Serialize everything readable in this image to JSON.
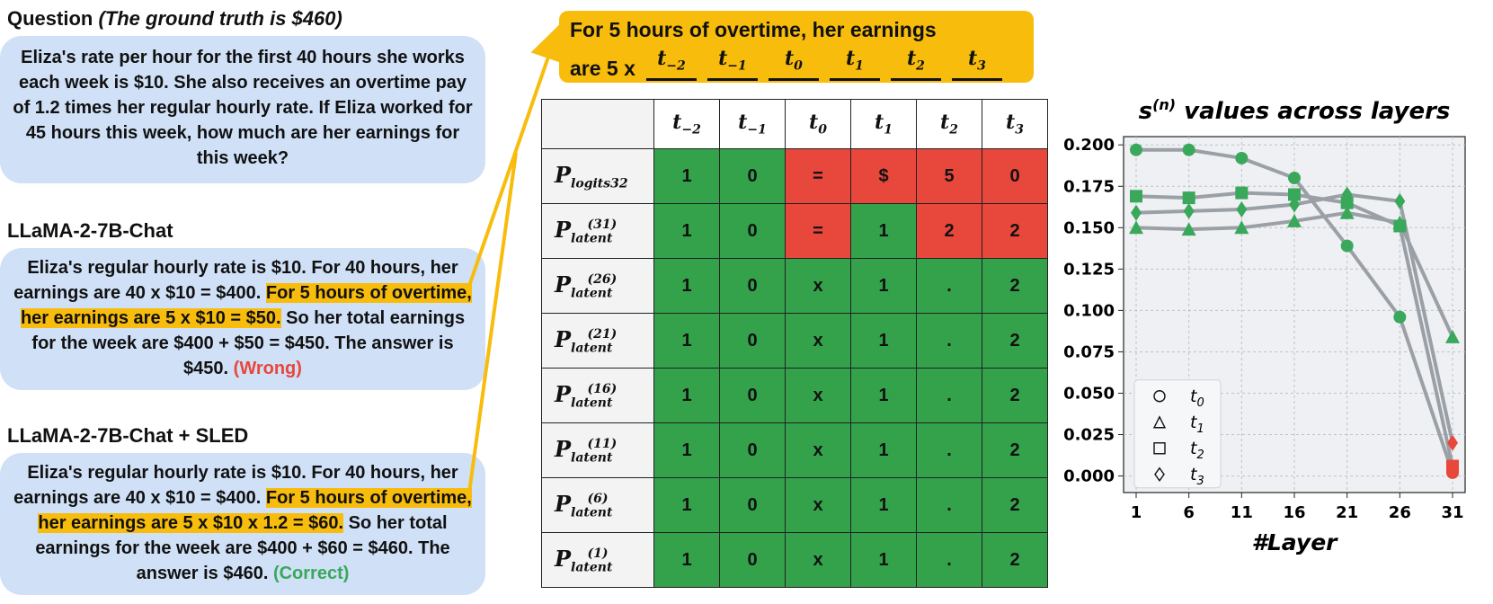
{
  "question": {
    "title": "Question",
    "title_note": "(The ground truth is $460)",
    "text": "Eliza's rate per hour for the first 40 hours she works each week is $10. She also receives an overtime pay of 1.2 times her regular hourly rate. If Eliza worked for 45 hours this week, how much are her earnings for this week?"
  },
  "baseline": {
    "title": "LLaMA-2-7B-Chat",
    "text_before": "Eliza's regular hourly rate is $10. For 40 hours, her earnings are 40 x $10 = $400. ",
    "highlight": "For 5 hours of overtime, her earnings are 5 x $10 = $50.",
    "text_after": " So her total earnings for the week are $400 + $50 = $450. The answer is $450. ",
    "verdict": "(Wrong)"
  },
  "sled": {
    "title": "LLaMA-2-7B-Chat + SLED",
    "text_before": "Eliza's regular hourly rate is $10. For 40 hours, her earnings are 40 x $10 = $400. ",
    "highlight": "For 5 hours of overtime, her earnings are 5 x $10 x 1.2 = $60.",
    "text_after": " So her total earnings for the week are $400 + $60 = $460. The answer is $460. ",
    "verdict": "(Correct)"
  },
  "callout": {
    "line1": "For 5 hours of overtime, her earnings",
    "line2_prefix": "are 5 x",
    "tokens": [
      {
        "base": "t",
        "sub": "−2"
      },
      {
        "base": "t",
        "sub": "−1"
      },
      {
        "base": "t",
        "sub": "0"
      },
      {
        "base": "t",
        "sub": "1"
      },
      {
        "base": "t",
        "sub": "2"
      },
      {
        "base": "t",
        "sub": "3"
      }
    ]
  },
  "table": {
    "columns": [
      {
        "base": "t",
        "sub": "−2"
      },
      {
        "base": "t",
        "sub": "−1"
      },
      {
        "base": "t",
        "sub": "0"
      },
      {
        "base": "t",
        "sub": "1"
      },
      {
        "base": "t",
        "sub": "2"
      },
      {
        "base": "t",
        "sub": "3"
      }
    ],
    "rows": [
      {
        "label": "P",
        "sub": "logits32",
        "sup": "",
        "cells": [
          "1",
          "0",
          "=",
          "$",
          "5",
          "0"
        ],
        "status": [
          "g",
          "g",
          "r",
          "r",
          "r",
          "r"
        ]
      },
      {
        "label": "P",
        "sub": "latent",
        "sup": "(31)",
        "cells": [
          "1",
          "0",
          "=",
          "1",
          "2",
          "2"
        ],
        "status": [
          "g",
          "g",
          "r",
          "g",
          "r",
          "r"
        ]
      },
      {
        "label": "P",
        "sub": "latent",
        "sup": "(26)",
        "cells": [
          "1",
          "0",
          "x",
          "1",
          ".",
          "2"
        ],
        "status": [
          "g",
          "g",
          "g",
          "g",
          "g",
          "g"
        ]
      },
      {
        "label": "P",
        "sub": "latent",
        "sup": "(21)",
        "cells": [
          "1",
          "0",
          "x",
          "1",
          ".",
          "2"
        ],
        "status": [
          "g",
          "g",
          "g",
          "g",
          "g",
          "g"
        ]
      },
      {
        "label": "P",
        "sub": "latent",
        "sup": "(16)",
        "cells": [
          "1",
          "0",
          "x",
          "1",
          ".",
          "2"
        ],
        "status": [
          "g",
          "g",
          "g",
          "g",
          "g",
          "g"
        ]
      },
      {
        "label": "P",
        "sub": "latent",
        "sup": "(11)",
        "cells": [
          "1",
          "0",
          "x",
          "1",
          ".",
          "2"
        ],
        "status": [
          "g",
          "g",
          "g",
          "g",
          "g",
          "g"
        ]
      },
      {
        "label": "P",
        "sub": "latent",
        "sup": "(6)",
        "cells": [
          "1",
          "0",
          "x",
          "1",
          ".",
          "2"
        ],
        "status": [
          "g",
          "g",
          "g",
          "g",
          "g",
          "g"
        ]
      },
      {
        "label": "P",
        "sub": "latent",
        "sup": "(1)",
        "cells": [
          "1",
          "0",
          "x",
          "1",
          ".",
          "2"
        ],
        "status": [
          "g",
          "g",
          "g",
          "g",
          "g",
          "g"
        ]
      }
    ],
    "colors": {
      "correct": "#33a24b",
      "wrong": "#e8473b"
    }
  },
  "chart_data": {
    "type": "line",
    "title_prefix": "s",
    "title_sup": "(n)",
    "title_suffix": " values across layers",
    "xlabel": "#Layer",
    "ylabel": "",
    "x": [
      1,
      6,
      11,
      16,
      21,
      26,
      31
    ],
    "ylim": [
      -0.01,
      0.205
    ],
    "yticks": [
      "0.000",
      "0.025",
      "0.050",
      "0.075",
      "0.100",
      "0.125",
      "0.150",
      "0.175",
      "0.200"
    ],
    "grid": true,
    "legend_position": "bottom-left",
    "line_color": "#9aa0a6",
    "marker_color_default": "#3aa85a",
    "marker_color_last_wrong": "#e8473b",
    "series": [
      {
        "name": "t0",
        "marker": "circle",
        "values": [
          0.197,
          0.197,
          0.192,
          0.18,
          0.139,
          0.096,
          0.002
        ],
        "last_wrong": true
      },
      {
        "name": "t1",
        "marker": "triangle",
        "values": [
          0.15,
          0.149,
          0.15,
          0.154,
          0.159,
          0.153,
          0.084
        ],
        "last_wrong": false
      },
      {
        "name": "t2",
        "marker": "square",
        "values": [
          0.169,
          0.168,
          0.171,
          0.17,
          0.165,
          0.151,
          0.006
        ],
        "last_wrong": true
      },
      {
        "name": "t3",
        "marker": "diamond",
        "values": [
          0.159,
          0.16,
          0.161,
          0.164,
          0.17,
          0.166,
          0.02
        ],
        "last_wrong": true
      }
    ]
  }
}
